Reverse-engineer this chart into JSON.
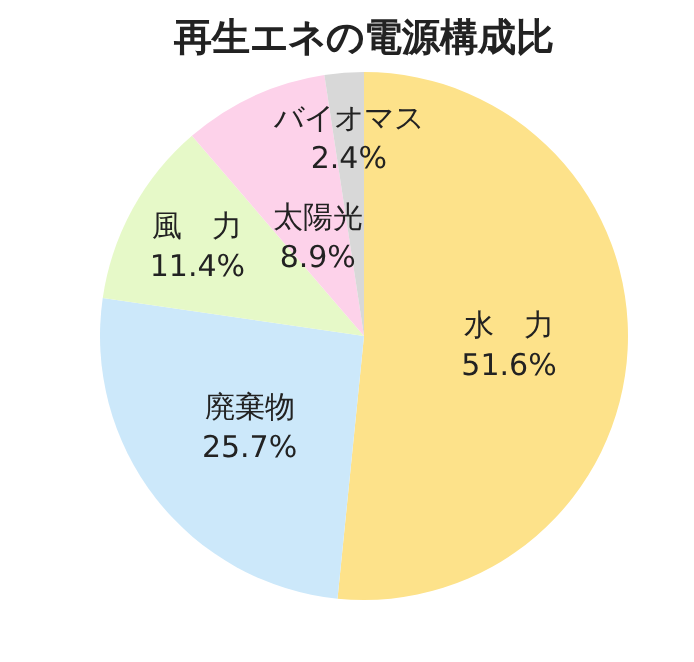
{
  "chart_data": {
    "type": "pie",
    "title": "再生エネの電源構成比",
    "categories": [
      "水　力",
      "廃棄物",
      "風　力",
      "太陽光",
      "バイオマス"
    ],
    "values": [
      51.6,
      25.7,
      11.4,
      8.9,
      2.4
    ],
    "value_labels": [
      "51.6%",
      "25.7%",
      "11.4%",
      "8.9%",
      "2.4%"
    ],
    "colors": [
      "#fde28a",
      "#cce8fa",
      "#e6f9c8",
      "#fdd2ea",
      "#d8d8d8"
    ]
  }
}
